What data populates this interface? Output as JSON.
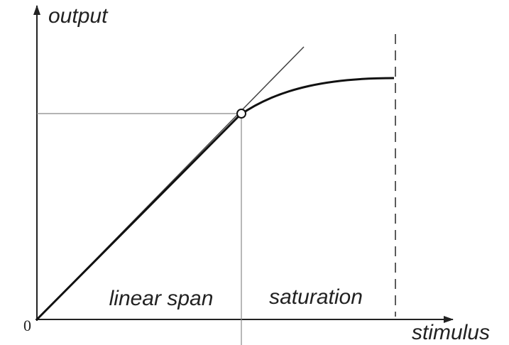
{
  "axes": {
    "y_label": "output",
    "x_label": "stimulus",
    "origin": "0"
  },
  "regions": {
    "linear": "linear span",
    "saturation": "saturation"
  }
}
